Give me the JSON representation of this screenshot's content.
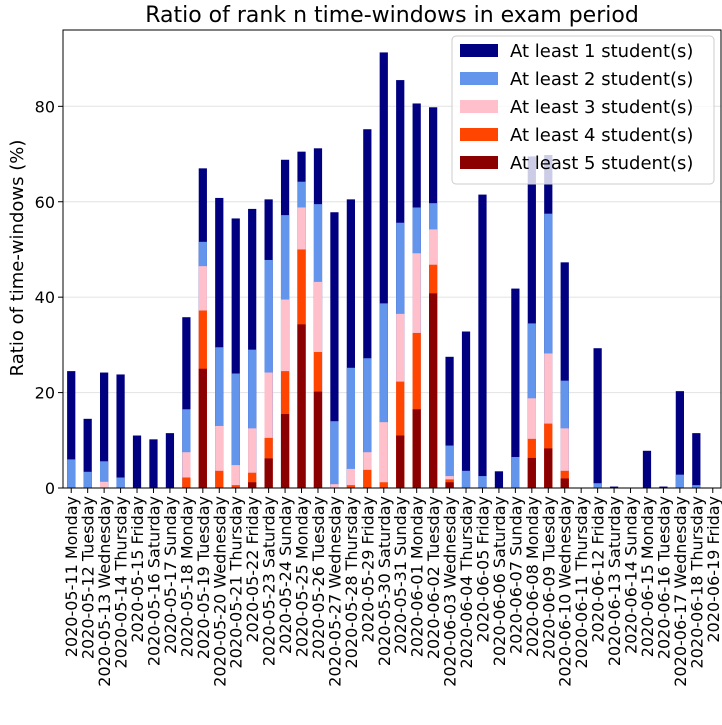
{
  "chart_data": {
    "type": "bar",
    "stacked_overlay": true,
    "title": "Ratio of rank n time-windows in exam period",
    "ylabel": "Ratio of time-windows (%)",
    "xlabel": "",
    "ylim": [
      0,
      96
    ],
    "yticks": [
      0,
      20,
      40,
      60,
      80
    ],
    "grid": "y",
    "legend_position": "top-right",
    "categories": [
      "2020-05-11 Monday",
      "2020-05-12 Tuesday",
      "2020-05-13 Wednesday",
      "2020-05-14 Thursday",
      "2020-05-15 Friday",
      "2020-05-16 Saturday",
      "2020-05-17 Sunday",
      "2020-05-18 Monday",
      "2020-05-19 Tuesday",
      "2020-05-20 Wednesday",
      "2020-05-21 Thursday",
      "2020-05-22 Friday",
      "2020-05-23 Saturday",
      "2020-05-24 Sunday",
      "2020-05-25 Monday",
      "2020-05-26 Tuesday",
      "2020-05-27 Wednesday",
      "2020-05-28 Thursday",
      "2020-05-29 Friday",
      "2020-05-30 Saturday",
      "2020-05-31 Sunday",
      "2020-06-01 Monday",
      "2020-06-02 Tuesday",
      "2020-06-03 Wednesday",
      "2020-06-04 Thursday",
      "2020-06-05 Friday",
      "2020-06-06 Saturday",
      "2020-06-07 Sunday",
      "2020-06-08 Monday",
      "2020-06-09 Tuesday",
      "2020-06-10 Wednesday",
      "2020-06-11 Thursday",
      "2020-06-12 Friday",
      "2020-06-13 Saturday",
      "2020-06-14 Sunday",
      "2020-06-15 Monday",
      "2020-06-16 Tuesday",
      "2020-06-17 Wednesday",
      "2020-06-18 Thursday",
      "2020-06-19 Friday"
    ],
    "series": [
      {
        "name": "At least 1 student(s)",
        "color": "#000080",
        "values": [
          24.5,
          14.5,
          24.2,
          23.8,
          11.0,
          10.2,
          11.5,
          35.8,
          67.0,
          60.8,
          56.5,
          58.5,
          60.5,
          68.8,
          70.5,
          71.2,
          57.8,
          60.5,
          75.2,
          91.3,
          85.5,
          80.6,
          79.8,
          27.5,
          32.8,
          61.5,
          3.5,
          41.8,
          69.5,
          69.8,
          47.3,
          0,
          29.3,
          0.3,
          0,
          7.8,
          0.3,
          20.3,
          11.5,
          0
        ]
      },
      {
        "name": "At least 2 student(s)",
        "color": "#6495ED",
        "values": [
          6.0,
          3.4,
          5.6,
          2.2,
          0,
          0,
          0,
          16.5,
          51.6,
          29.5,
          24.0,
          29.0,
          47.8,
          57.2,
          64.2,
          59.5,
          14.0,
          25.2,
          27.2,
          38.7,
          55.6,
          58.8,
          59.7,
          8.9,
          3.6,
          2.5,
          0,
          6.5,
          34.5,
          57.5,
          22.5,
          0,
          1.0,
          0,
          0,
          0,
          0,
          2.8,
          0.6,
          0
        ]
      },
      {
        "name": "At least 3 student(s)",
        "color": "#FFC0CB",
        "values": [
          0,
          0,
          1.3,
          0,
          0,
          0,
          0,
          7.5,
          46.5,
          13.0,
          4.8,
          12.5,
          24.2,
          39.5,
          58.8,
          43.2,
          0.8,
          4.0,
          7.5,
          13.8,
          36.5,
          49.2,
          54.2,
          2.5,
          0,
          0,
          0,
          0,
          18.8,
          28.2,
          12.5,
          0,
          0,
          0,
          0,
          0,
          0,
          0,
          0,
          0
        ]
      },
      {
        "name": "At least 4 student(s)",
        "color": "#FF4500",
        "values": [
          0,
          0,
          0,
          0,
          0,
          0,
          0,
          2.2,
          37.2,
          3.6,
          0.6,
          3.2,
          10.5,
          24.5,
          50.0,
          28.5,
          0,
          0.6,
          3.8,
          1.2,
          22.3,
          32.5,
          46.8,
          1.8,
          0,
          0,
          0,
          0,
          10.3,
          13.5,
          3.6,
          0,
          0,
          0,
          0,
          0,
          0,
          0,
          0,
          0
        ]
      },
      {
        "name": "At least 5 student(s)",
        "color": "#8B0000",
        "values": [
          0,
          0,
          0,
          0,
          0,
          0,
          0,
          0,
          25.0,
          0,
          0,
          1.2,
          6.2,
          15.5,
          34.3,
          20.2,
          0,
          0,
          0,
          0,
          11.0,
          16.5,
          40.8,
          1.2,
          0,
          0,
          0,
          0,
          6.3,
          8.3,
          2.0,
          0,
          0,
          0,
          0,
          0,
          0,
          0,
          0,
          0
        ]
      }
    ]
  }
}
